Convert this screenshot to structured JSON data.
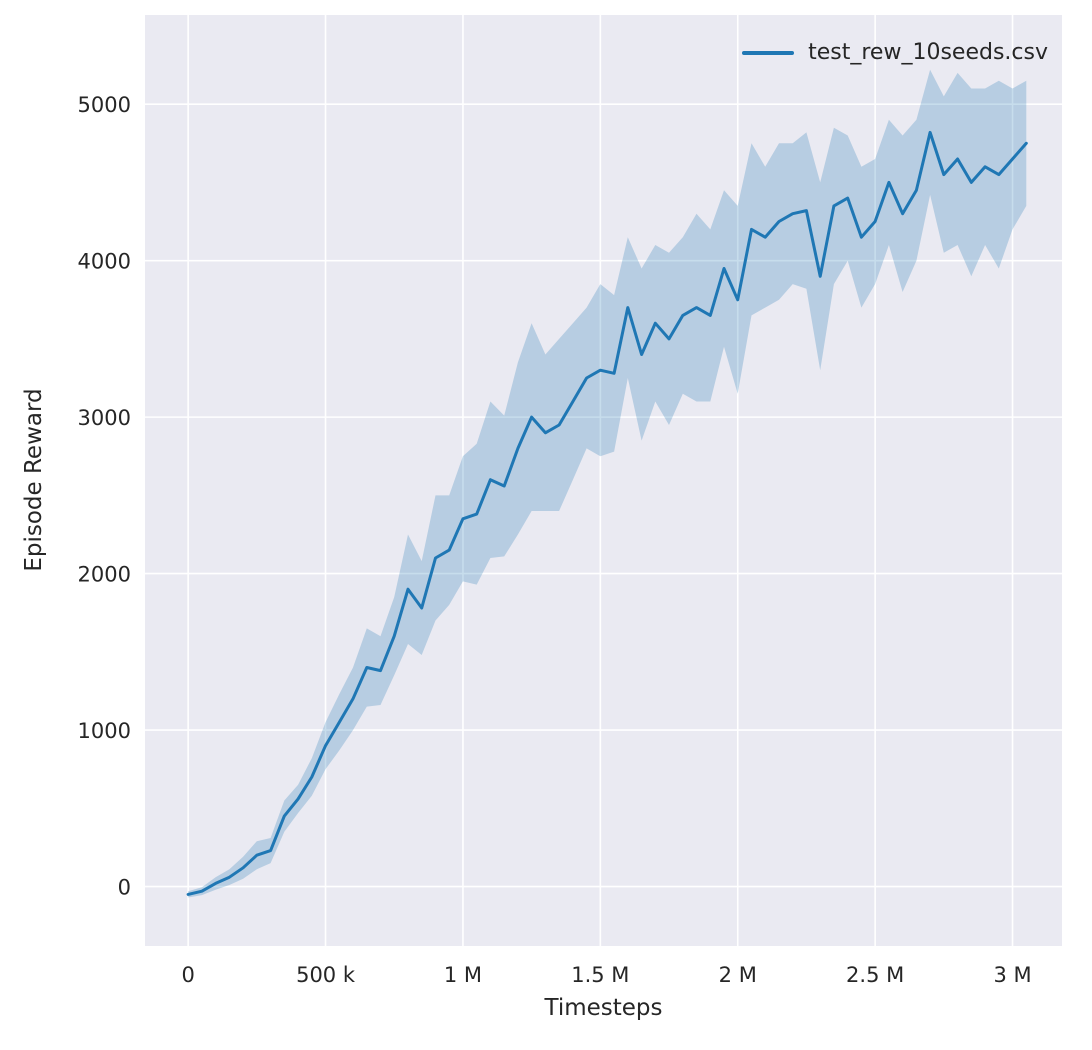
{
  "colors": {
    "plot_bg": "#eaeaf2",
    "grid": "#ffffff",
    "accent": "#1f77b4",
    "tick_text": "#262626"
  },
  "chart_data": {
    "type": "line",
    "title": "",
    "xlabel": "Timesteps",
    "ylabel": "Episode Reward",
    "grid": true,
    "legend_position": "upper right",
    "xlim": [
      -157000,
      3180000
    ],
    "ylim": [
      -380,
      5570
    ],
    "xticks": {
      "values": [
        0,
        500000,
        1000000,
        1500000,
        2000000,
        2500000,
        3000000
      ],
      "labels": [
        "0",
        "500 k",
        "1 M",
        "1.5 M",
        "2 M",
        "2.5 M",
        "3 M"
      ]
    },
    "yticks": {
      "values": [
        0,
        1000,
        2000,
        3000,
        4000,
        5000
      ],
      "labels": [
        "0",
        "1000",
        "2000",
        "3000",
        "4000",
        "5000"
      ]
    },
    "series": [
      {
        "name": "test_rew_10seeds.csv",
        "color": "#1f77b4",
        "band_opacity": 0.25,
        "x": [
          0,
          50000,
          100000,
          150000,
          200000,
          250000,
          300000,
          350000,
          400000,
          450000,
          500000,
          550000,
          600000,
          650000,
          700000,
          750000,
          800000,
          850000,
          900000,
          950000,
          1000000,
          1050000,
          1100000,
          1150000,
          1200000,
          1250000,
          1300000,
          1350000,
          1400000,
          1450000,
          1500000,
          1550000,
          1600000,
          1650000,
          1700000,
          1750000,
          1800000,
          1850000,
          1900000,
          1950000,
          2000000,
          2050000,
          2100000,
          2150000,
          2200000,
          2250000,
          2300000,
          2350000,
          2400000,
          2450000,
          2500000,
          2550000,
          2600000,
          2650000,
          2700000,
          2750000,
          2800000,
          2850000,
          2900000,
          2950000,
          3000000,
          3050000
        ],
        "mean": [
          -50,
          -30,
          20,
          60,
          120,
          200,
          230,
          450,
          560,
          700,
          900,
          1050,
          1200,
          1400,
          1380,
          1600,
          1900,
          1780,
          2100,
          2150,
          2350,
          2380,
          2600,
          2560,
          2800,
          3000,
          2900,
          2950,
          3100,
          3250,
          3300,
          3280,
          3700,
          3400,
          3600,
          3500,
          3650,
          3700,
          3650,
          3950,
          3750,
          4200,
          4150,
          4250,
          4300,
          4320,
          3900,
          4350,
          4400,
          4150,
          4250,
          4500,
          4300,
          4450,
          4820,
          4550,
          4650,
          4500,
          4600,
          4550,
          4650,
          4750
        ],
        "lower": [
          -70,
          -55,
          -20,
          10,
          50,
          110,
          150,
          350,
          470,
          580,
          750,
          870,
          1000,
          1150,
          1160,
          1350,
          1550,
          1480,
          1700,
          1800,
          1950,
          1930,
          2100,
          2110,
          2250,
          2400,
          2400,
          2400,
          2600,
          2800,
          2750,
          2780,
          3250,
          2850,
          3100,
          2950,
          3150,
          3100,
          3100,
          3450,
          3150,
          3650,
          3700,
          3750,
          3850,
          3820,
          3300,
          3850,
          4000,
          3700,
          3850,
          4100,
          3800,
          4000,
          4420,
          4050,
          4100,
          3900,
          4100,
          3950,
          4200,
          4350
        ],
        "upper": [
          -30,
          -5,
          60,
          110,
          190,
          290,
          310,
          550,
          650,
          820,
          1050,
          1230,
          1400,
          1650,
          1600,
          1850,
          2250,
          2080,
          2500,
          2500,
          2750,
          2830,
          3100,
          3010,
          3350,
          3600,
          3400,
          3500,
          3600,
          3700,
          3850,
          3780,
          4150,
          3950,
          4100,
          4050,
          4150,
          4300,
          4200,
          4450,
          4350,
          4750,
          4600,
          4750,
          4750,
          4820,
          4500,
          4850,
          4800,
          4600,
          4650,
          4900,
          4800,
          4900,
          5220,
          5050,
          5200,
          5100,
          5100,
          5150,
          5100,
          5150
        ]
      }
    ]
  }
}
